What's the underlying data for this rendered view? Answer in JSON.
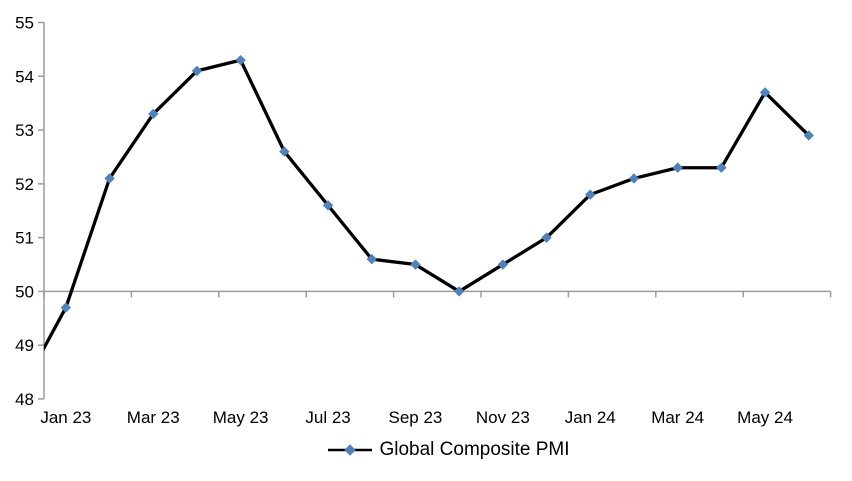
{
  "chart_data": {
    "type": "line",
    "title": "",
    "legend": "Global Composite PMI",
    "legend_position": "bottom-center",
    "series_name": "Global Composite PMI",
    "x": [
      "Dec 22",
      "Jan 23",
      "Feb 23",
      "Mar 23",
      "Apr 23",
      "May 23",
      "Jun 23",
      "Jul 23",
      "Aug 23",
      "Sep 23",
      "Oct 23",
      "Nov 23",
      "Dec 23",
      "Jan 24",
      "Feb 24",
      "Mar 24",
      "Apr 24",
      "May 24",
      "Jun 24"
    ],
    "values": [
      48.2,
      49.7,
      52.1,
      53.3,
      54.1,
      54.3,
      52.6,
      51.6,
      50.6,
      50.5,
      50.0,
      50.5,
      51.0,
      51.8,
      52.1,
      52.3,
      52.3,
      53.7,
      52.9
    ],
    "first_category_clipped_at_left_edge": true,
    "x_tick_labels": [
      "Jan 23",
      "Mar 23",
      "May 23",
      "Jul 23",
      "Sep 23",
      "Nov 23",
      "Jan 24",
      "Mar 24",
      "May 24"
    ],
    "y_ticks": [
      48,
      49,
      50,
      51,
      52,
      53,
      54,
      55
    ],
    "ylim": [
      48,
      55
    ],
    "category_axis_value": 50,
    "grid": false,
    "line_color": "#000000",
    "marker_color": "#4F81BD",
    "marker_shape": "diamond",
    "axis_color": "#9C9C9C",
    "text_color": "#000000",
    "background": "#FFFFFF"
  }
}
